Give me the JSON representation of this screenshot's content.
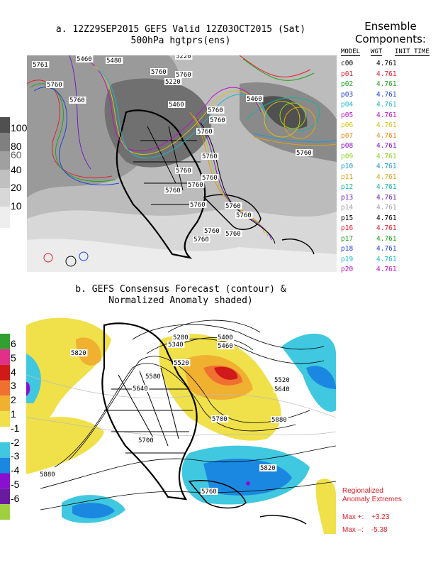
{
  "panel_a": {
    "title_line1": "a. 12Z29SEP2015 GEFS Valid 12Z03OCT2015 (Sat)",
    "title_line2": "500hPa hgtprs(ens)",
    "colorbar_labels": [
      "100",
      "80",
      "60",
      "40",
      "20",
      "10"
    ],
    "contour_labels": [
      "5460",
      "5480",
      "5220",
      "5220",
      "5761",
      "5760",
      "5760",
      "5760",
      "5760",
      "5460",
      "5760",
      "5760",
      "5460",
      "5760",
      "5760",
      "5760",
      "5760",
      "5760",
      "5760",
      "5760",
      "5760",
      "5760",
      "5760",
      "5760",
      "5760",
      "5760"
    ]
  },
  "legend": {
    "title_line1": "Ensemble",
    "title_line2": "Components:",
    "col_model": "MODEL",
    "col_wgt": "WGT",
    "col_init": "INIT TIME",
    "members": [
      {
        "code": "c00",
        "wgt": "4.761",
        "color": "#000000"
      },
      {
        "code": "p01",
        "wgt": "4.761",
        "color": "#e0202a"
      },
      {
        "code": "p02",
        "wgt": "4.761",
        "color": "#1aa51a"
      },
      {
        "code": "p03",
        "wgt": "4.761",
        "color": "#2040e0"
      },
      {
        "code": "p04",
        "wgt": "4.761",
        "color": "#19b8cc"
      },
      {
        "code": "p05",
        "wgt": "4.761",
        "color": "#c010c0"
      },
      {
        "code": "p06",
        "wgt": "4.761",
        "color": "#d4c414"
      },
      {
        "code": "p07",
        "wgt": "4.761",
        "color": "#ee8c14"
      },
      {
        "code": "p08",
        "wgt": "4.761",
        "color": "#8a10c8"
      },
      {
        "code": "p09",
        "wgt": "4.761",
        "color": "#8cd61a"
      },
      {
        "code": "p10",
        "wgt": "4.761",
        "color": "#1a9ad6"
      },
      {
        "code": "p11",
        "wgt": "4.761",
        "color": "#e0a414"
      },
      {
        "code": "p12",
        "wgt": "4.761",
        "color": "#14b49c"
      },
      {
        "code": "p13",
        "wgt": "4.761",
        "color": "#7020c0"
      },
      {
        "code": "p14",
        "wgt": "4.761",
        "color": "#a0a0a0"
      },
      {
        "code": "p15",
        "wgt": "4.761",
        "color": "#000000"
      },
      {
        "code": "p16",
        "wgt": "4.761",
        "color": "#e0202a"
      },
      {
        "code": "p17",
        "wgt": "4.761",
        "color": "#1aa51a"
      },
      {
        "code": "p18",
        "wgt": "4.761",
        "color": "#2040e0"
      },
      {
        "code": "p19",
        "wgt": "4.761",
        "color": "#19b8cc"
      },
      {
        "code": "p20",
        "wgt": "4.761",
        "color": "#c010c0"
      }
    ]
  },
  "panel_b": {
    "title_line1": "b. GEFS Consensus Forecast (contour) &",
    "title_line2": "Normalized Anomaly shaded)",
    "colorbar_labels": [
      "6",
      "5",
      "4",
      "3",
      "2",
      "1",
      "-1",
      "-2",
      "-3",
      "-4",
      "-5",
      "-6"
    ],
    "contour_labels": [
      "5820",
      "5280",
      "5340",
      "5400",
      "5460",
      "5520",
      "5580",
      "5640",
      "5700",
      "5700",
      "5880",
      "5880",
      "5820",
      "5760",
      "5640",
      "5520"
    ],
    "extremes_title1": "Regionalized",
    "extremes_title2": "Anomaly Extremes",
    "max_pos_label": "Max +:",
    "max_pos_value": "+3.23",
    "max_neg_label": "Max –:",
    "max_neg_value": "-5.38"
  },
  "anomaly_colors": [
    "#30a030",
    "#e0308a",
    "#d01a1a",
    "#f07030",
    "#f0b030",
    "#f0e04a",
    "#ffffff",
    "#40c8e0",
    "#1a88e0",
    "#8a10d0",
    "#6a1aa0",
    "#a0d040"
  ]
}
